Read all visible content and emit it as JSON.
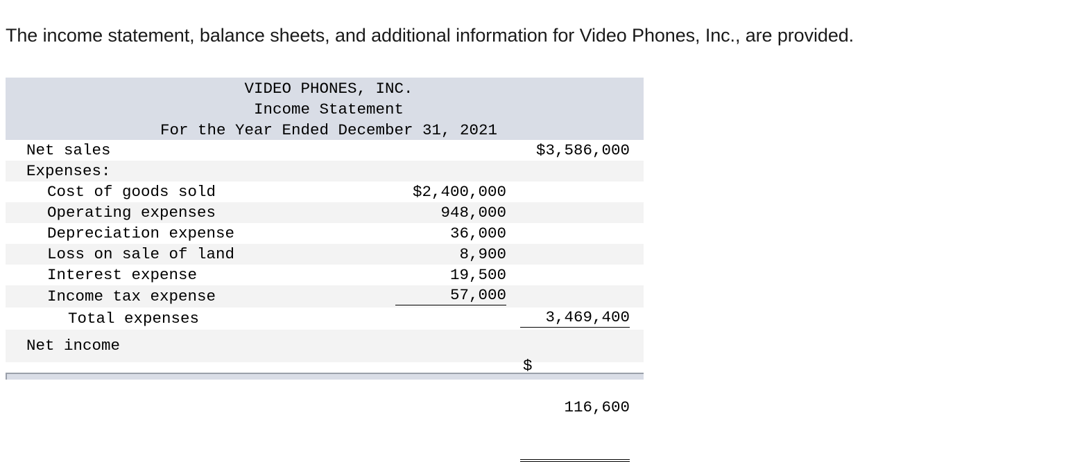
{
  "intro_text": "The income statement, balance sheets, and additional information for Video Phones, Inc., are provided.",
  "statement": {
    "company": "VIDEO PHONES, INC.",
    "title": "Income Statement",
    "period": "For the Year Ended December 31, 2021",
    "net_sales": {
      "label": "Net sales",
      "amount": "$3,586,000"
    },
    "expenses_label": "Expenses:",
    "expenses": [
      {
        "label": "Cost of goods sold",
        "amount": "$2,400,000"
      },
      {
        "label": "Operating expenses",
        "amount": "948,000"
      },
      {
        "label": "Depreciation expense",
        "amount": "36,000"
      },
      {
        "label": "Loss on sale of land",
        "amount": "8,900"
      },
      {
        "label": "Interest expense",
        "amount": "19,500"
      },
      {
        "label": "Income tax expense",
        "amount": "57,000"
      }
    ],
    "total_expenses": {
      "label": "Total expenses",
      "amount": "3,469,400"
    },
    "net_income": {
      "label": "Net income",
      "currency": "$",
      "amount": "116,600"
    }
  }
}
